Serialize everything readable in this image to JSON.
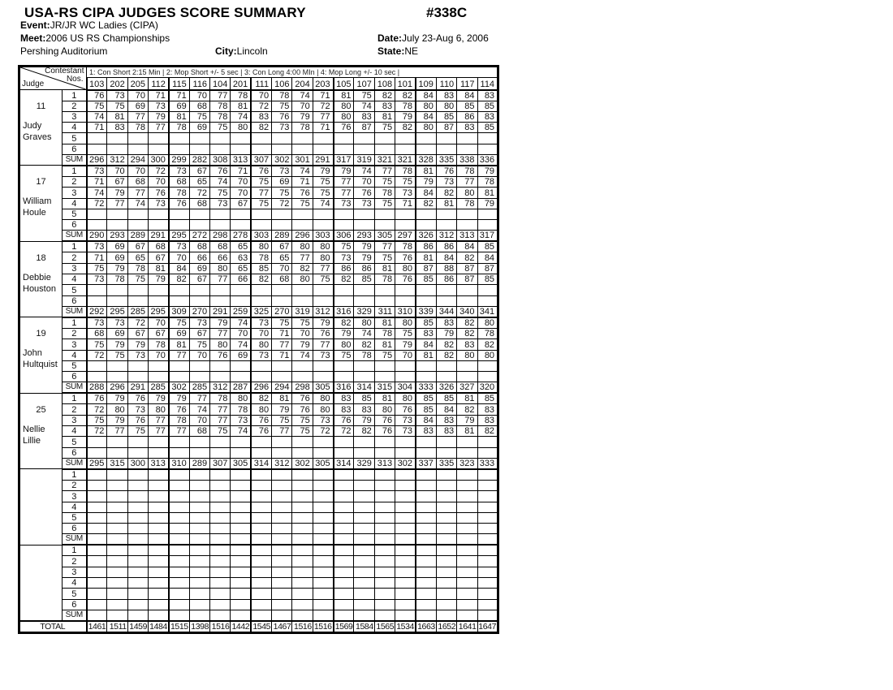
{
  "title": "USA-RS CIPA JUDGES SCORE SUMMARY",
  "doc_number": "#338C",
  "header": {
    "event_label": "Event:",
    "event_value": "JR/JR WC Ladies  (CIPA)",
    "meet_label": "Meet:",
    "meet_value": "2006 US RS Championships",
    "date_label": "Date:",
    "date_value": "July 23-Aug 6, 2006",
    "venue": "Pershing Auditorium",
    "city_label": "City:",
    "city_value": "Lincoln",
    "state_label": "State:",
    "state_value": "NE"
  },
  "table": {
    "corner": {
      "top": "Contestant",
      "mid": "Nos.",
      "bottom": "Judge"
    },
    "program_header": "1: Con Short 2:15 Min |  2: Mop Short  +/- 5 sec |  3: Con Long  4:00 MIn |  4: Mop Long +/- 10 sec |",
    "contestants": [
      "103",
      "202",
      "205",
      "112",
      "115",
      "116",
      "104",
      "201",
      "111",
      "106",
      "204",
      "203",
      "105",
      "107",
      "108",
      "101",
      "109",
      "110",
      "117",
      "114"
    ],
    "row_labels": [
      "1",
      "2",
      "3",
      "4",
      "5",
      "6"
    ],
    "sum_label": "SUM",
    "total_label": "TOTAL",
    "judges": [
      {
        "number": "11",
        "name": [
          "Judy",
          "Graves"
        ],
        "scores": [
          [
            76,
            73,
            70,
            71,
            71,
            70,
            77,
            78,
            70,
            78,
            74,
            71,
            81,
            75,
            82,
            82,
            84,
            83,
            84,
            83
          ],
          [
            75,
            75,
            69,
            73,
            69,
            68,
            78,
            81,
            72,
            75,
            70,
            72,
            80,
            74,
            83,
            78,
            80,
            80,
            85,
            85
          ],
          [
            74,
            81,
            77,
            79,
            81,
            75,
            78,
            74,
            83,
            76,
            79,
            77,
            80,
            83,
            81,
            79,
            84,
            85,
            86,
            83
          ],
          [
            71,
            83,
            78,
            77,
            78,
            69,
            75,
            80,
            82,
            73,
            78,
            71,
            76,
            87,
            75,
            82,
            80,
            87,
            83,
            85
          ],
          [],
          []
        ],
        "sum": [
          296,
          312,
          294,
          300,
          299,
          282,
          308,
          313,
          307,
          302,
          301,
          291,
          317,
          319,
          321,
          321,
          328,
          335,
          338,
          336
        ]
      },
      {
        "number": "17",
        "name": [
          "William",
          "Houle"
        ],
        "scores": [
          [
            73,
            70,
            70,
            72,
            73,
            67,
            76,
            71,
            76,
            73,
            74,
            79,
            79,
            74,
            77,
            78,
            81,
            76,
            78,
            79
          ],
          [
            71,
            67,
            68,
            70,
            68,
            65,
            74,
            70,
            75,
            69,
            71,
            75,
            77,
            70,
            75,
            75,
            79,
            73,
            77,
            78
          ],
          [
            74,
            79,
            77,
            76,
            78,
            72,
            75,
            70,
            77,
            75,
            76,
            75,
            77,
            76,
            78,
            73,
            84,
            82,
            80,
            81
          ],
          [
            72,
            77,
            74,
            73,
            76,
            68,
            73,
            67,
            75,
            72,
            75,
            74,
            73,
            73,
            75,
            71,
            82,
            81,
            78,
            79
          ],
          [],
          []
        ],
        "sum": [
          290,
          293,
          289,
          291,
          295,
          272,
          298,
          278,
          303,
          289,
          296,
          303,
          306,
          293,
          305,
          297,
          326,
          312,
          313,
          317
        ]
      },
      {
        "number": "18",
        "name": [
          "Debbie",
          "Houston"
        ],
        "scores": [
          [
            73,
            69,
            67,
            68,
            73,
            68,
            68,
            65,
            80,
            67,
            80,
            80,
            75,
            79,
            77,
            78,
            86,
            86,
            84,
            85
          ],
          [
            71,
            69,
            65,
            67,
            70,
            66,
            66,
            63,
            78,
            65,
            77,
            80,
            73,
            79,
            75,
            76,
            81,
            84,
            82,
            84
          ],
          [
            75,
            79,
            78,
            81,
            84,
            69,
            80,
            65,
            85,
            70,
            82,
            77,
            86,
            86,
            81,
            80,
            87,
            88,
            87,
            87
          ],
          [
            73,
            78,
            75,
            79,
            82,
            67,
            77,
            66,
            82,
            68,
            80,
            75,
            82,
            85,
            78,
            76,
            85,
            86,
            87,
            85
          ],
          [],
          []
        ],
        "sum": [
          292,
          295,
          285,
          295,
          309,
          270,
          291,
          259,
          325,
          270,
          319,
          312,
          316,
          329,
          311,
          310,
          339,
          344,
          340,
          341
        ]
      },
      {
        "number": "19",
        "name": [
          "John",
          "Hultquist"
        ],
        "scores": [
          [
            73,
            73,
            72,
            70,
            75,
            73,
            79,
            74,
            73,
            75,
            75,
            79,
            82,
            80,
            81,
            80,
            85,
            83,
            82,
            80
          ],
          [
            68,
            69,
            67,
            67,
            69,
            67,
            77,
            70,
            70,
            71,
            70,
            76,
            79,
            74,
            78,
            75,
            83,
            79,
            82,
            78
          ],
          [
            75,
            79,
            79,
            78,
            81,
            75,
            80,
            74,
            80,
            77,
            79,
            77,
            80,
            82,
            81,
            79,
            84,
            82,
            83,
            82
          ],
          [
            72,
            75,
            73,
            70,
            77,
            70,
            76,
            69,
            73,
            71,
            74,
            73,
            75,
            78,
            75,
            70,
            81,
            82,
            80,
            80
          ],
          [],
          []
        ],
        "sum": [
          288,
          296,
          291,
          285,
          302,
          285,
          312,
          287,
          296,
          294,
          298,
          305,
          316,
          314,
          315,
          304,
          333,
          326,
          327,
          320
        ]
      },
      {
        "number": "25",
        "name": [
          "Nellie",
          "Lillie"
        ],
        "scores": [
          [
            76,
            79,
            76,
            79,
            79,
            77,
            78,
            80,
            82,
            81,
            76,
            80,
            83,
            85,
            81,
            80,
            85,
            85,
            81,
            85
          ],
          [
            72,
            80,
            73,
            80,
            76,
            74,
            77,
            78,
            80,
            79,
            76,
            80,
            83,
            83,
            80,
            76,
            85,
            84,
            82,
            83
          ],
          [
            75,
            79,
            76,
            77,
            78,
            70,
            77,
            73,
            76,
            75,
            75,
            73,
            76,
            79,
            76,
            73,
            84,
            83,
            79,
            83
          ],
          [
            72,
            77,
            75,
            77,
            77,
            68,
            75,
            74,
            76,
            77,
            75,
            72,
            72,
            82,
            76,
            73,
            83,
            83,
            81,
            82
          ],
          [],
          []
        ],
        "sum": [
          295,
          315,
          300,
          313,
          310,
          289,
          307,
          305,
          314,
          312,
          302,
          305,
          314,
          329,
          313,
          302,
          337,
          335,
          323,
          333
        ]
      },
      {
        "number": "",
        "name": [],
        "scores": [
          [],
          [],
          [],
          [],
          [],
          []
        ],
        "sum": []
      },
      {
        "number": "",
        "name": [],
        "scores": [
          [],
          [],
          [],
          [],
          [],
          []
        ],
        "sum": []
      }
    ],
    "totals": [
      1461,
      1511,
      1459,
      1484,
      1515,
      1398,
      1516,
      1442,
      1545,
      1467,
      1516,
      1516,
      1569,
      1584,
      1565,
      1534,
      1663,
      1652,
      1641,
      1647
    ]
  }
}
